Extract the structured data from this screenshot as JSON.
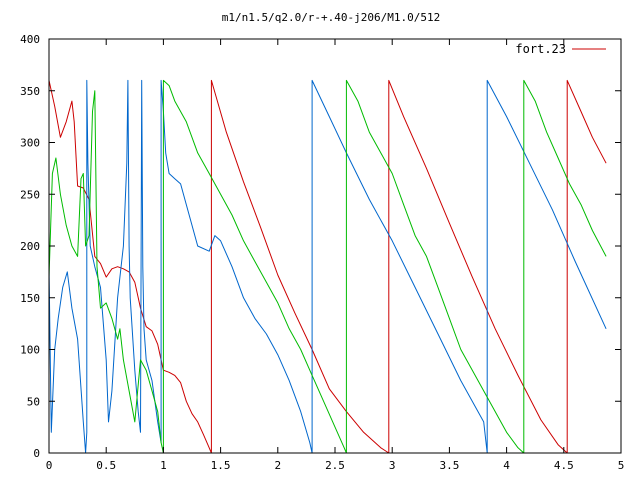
{
  "chart_data": {
    "type": "line",
    "title": "m1/n1.5/q2.0/r-+.40-j206/M1.0/512",
    "xlabel": "",
    "ylabel": "",
    "xlim": [
      0,
      5
    ],
    "ylim": [
      0,
      400
    ],
    "x_ticks": [
      0,
      0.5,
      1,
      1.5,
      2,
      2.5,
      3,
      3.5,
      4,
      4.5,
      5
    ],
    "x_tick_labels": [
      "0",
      "0.5",
      "1",
      "1.5",
      "2",
      "2.5",
      "3",
      "3.5",
      "4",
      "4.5",
      "5"
    ],
    "y_ticks": [
      0,
      50,
      100,
      150,
      200,
      250,
      300,
      350,
      400
    ],
    "y_tick_labels": [
      "0",
      "50",
      "100",
      "150",
      "200",
      "250",
      "300",
      "350",
      "400"
    ],
    "grid": false,
    "legend": {
      "placement": "top-right",
      "entries": [
        {
          "label": "fort.23",
          "color": "#cc0000"
        }
      ]
    },
    "series": [
      {
        "color": "#cc0000",
        "x": [
          0,
          0.05,
          0.1,
          0.15,
          0.2,
          0.22,
          0.25,
          0.3,
          0.35,
          0.4,
          0.45,
          0.5,
          0.55,
          0.6,
          0.65,
          0.7,
          0.75,
          0.8,
          0.85,
          0.9,
          0.95,
          0.98,
          1.0,
          1.05,
          1.1,
          1.15,
          1.2,
          1.25,
          1.3,
          1.35,
          1.4,
          1.42,
          1.42,
          1.55,
          1.7,
          1.85,
          2.0,
          2.15,
          2.3,
          2.45,
          2.6,
          2.75,
          2.9,
          2.97,
          2.97,
          3.1,
          3.3,
          3.5,
          3.7,
          3.9,
          4.1,
          4.3,
          4.45,
          4.53,
          4.53,
          4.65,
          4.75,
          4.87
        ],
        "y": [
          360,
          335,
          305,
          320,
          340,
          320,
          258,
          256,
          245,
          190,
          183,
          170,
          178,
          180,
          178,
          175,
          165,
          140,
          122,
          118,
          105,
          90,
          80,
          78,
          75,
          68,
          50,
          38,
          30,
          18,
          5,
          0,
          360,
          310,
          262,
          218,
          172,
          135,
          100,
          62,
          40,
          20,
          5,
          0,
          360,
          325,
          275,
          222,
          170,
          120,
          75,
          32,
          8,
          0,
          360,
          330,
          305,
          280
        ]
      },
      {
        "color": "#0066cc",
        "x": [
          0,
          0.02,
          0.05,
          0.08,
          0.12,
          0.16,
          0.2,
          0.25,
          0.3,
          0.32,
          0.33,
          0.33,
          0.34,
          0.36,
          0.4,
          0.45,
          0.5,
          0.52,
          0.55,
          0.6,
          0.65,
          0.68,
          0.69,
          0.7,
          0.71,
          0.75,
          0.78,
          0.8,
          0.81,
          0.82,
          0.83,
          0.85,
          0.9,
          0.95,
          0.98,
          0.98,
          1.0,
          1.02,
          1.05,
          1.1,
          1.15,
          1.2,
          1.3,
          1.4,
          1.45,
          1.5,
          1.6,
          1.7,
          1.8,
          1.9,
          2.0,
          2.1,
          2.2,
          2.28,
          2.3,
          2.3,
          2.45,
          2.6,
          2.8,
          3.0,
          3.2,
          3.4,
          3.6,
          3.8,
          3.83,
          3.83,
          4.0,
          4.2,
          4.4,
          4.6,
          4.87
        ],
        "y": [
          180,
          20,
          100,
          130,
          160,
          175,
          140,
          110,
          30,
          0,
          20,
          360,
          280,
          200,
          180,
          160,
          90,
          30,
          60,
          150,
          200,
          280,
          360,
          200,
          150,
          80,
          40,
          20,
          360,
          180,
          120,
          90,
          70,
          30,
          10,
          360,
          330,
          290,
          270,
          265,
          260,
          240,
          200,
          195,
          210,
          205,
          180,
          150,
          130,
          115,
          95,
          70,
          40,
          10,
          0,
          360,
          325,
          290,
          245,
          205,
          160,
          115,
          70,
          30,
          0,
          360,
          325,
          280,
          235,
          185,
          120
        ]
      },
      {
        "color": "#00bb00",
        "x": [
          0,
          0.03,
          0.06,
          0.1,
          0.15,
          0.2,
          0.25,
          0.28,
          0.3,
          0.32,
          0.35,
          0.38,
          0.4,
          0.42,
          0.45,
          0.5,
          0.55,
          0.6,
          0.62,
          0.65,
          0.7,
          0.75,
          0.8,
          0.85,
          0.9,
          0.95,
          0.98,
          1.0,
          1.0,
          1.05,
          1.1,
          1.2,
          1.3,
          1.4,
          1.5,
          1.6,
          1.7,
          1.8,
          1.9,
          2.0,
          2.1,
          2.2,
          2.3,
          2.4,
          2.5,
          2.58,
          2.6,
          2.6,
          2.7,
          2.8,
          2.9,
          3.0,
          3.1,
          3.2,
          3.3,
          3.4,
          3.5,
          3.6,
          3.7,
          3.8,
          3.9,
          4.0,
          4.1,
          4.15,
          4.15,
          4.25,
          4.35,
          4.45,
          4.55,
          4.65,
          4.75,
          4.87
        ],
        "y": [
          170,
          270,
          285,
          250,
          220,
          200,
          190,
          265,
          270,
          200,
          210,
          330,
          350,
          180,
          140,
          145,
          130,
          110,
          120,
          90,
          60,
          30,
          90,
          80,
          60,
          40,
          10,
          0,
          360,
          355,
          340,
          320,
          290,
          270,
          250,
          230,
          205,
          185,
          165,
          145,
          120,
          100,
          75,
          50,
          25,
          5,
          0,
          360,
          340,
          310,
          290,
          270,
          240,
          210,
          190,
          160,
          130,
          100,
          80,
          60,
          40,
          20,
          5,
          0,
          360,
          340,
          310,
          285,
          260,
          240,
          215,
          190
        ]
      }
    ]
  }
}
